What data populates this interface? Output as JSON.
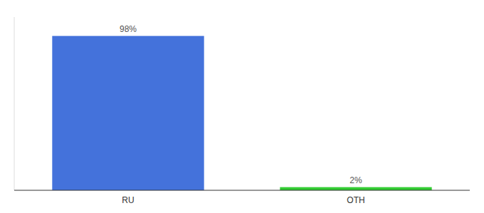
{
  "chart_data": {
    "type": "bar",
    "categories": [
      "RU",
      "OTH"
    ],
    "values": [
      98,
      2
    ],
    "value_labels": [
      "98%",
      "2%"
    ],
    "colors": [
      "#4472DB",
      "#33CC33"
    ],
    "ylim": [
      0,
      110
    ],
    "data_labels": true,
    "tick_labels": "x",
    "grid": false
  }
}
